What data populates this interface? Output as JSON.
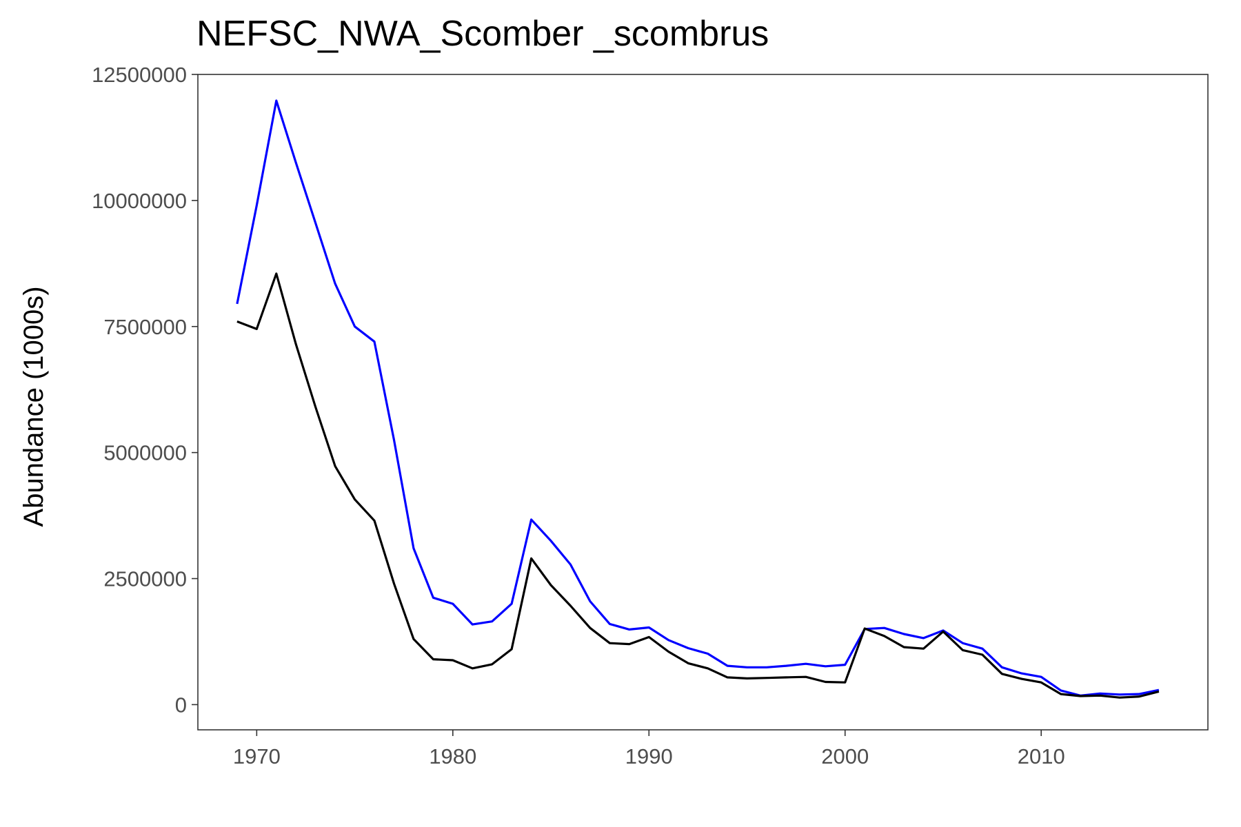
{
  "chart_data": {
    "type": "line",
    "title": "NEFSC_NWA_Scomber _scombrus",
    "xlabel": "",
    "ylabel": "Abundance (1000s)",
    "xlim": [
      1967,
      2018.5
    ],
    "ylim": [
      -500000,
      12500000
    ],
    "x_ticks": [
      1970,
      1980,
      1990,
      2000,
      2010
    ],
    "y_ticks": [
      0,
      2500000,
      5000000,
      7500000,
      10000000,
      12500000
    ],
    "grid": false,
    "legend": "none",
    "x": [
      1969,
      1970,
      1971,
      1972,
      1973,
      1974,
      1975,
      1976,
      1977,
      1978,
      1979,
      1980,
      1981,
      1982,
      1983,
      1984,
      1985,
      1986,
      1987,
      1988,
      1989,
      1990,
      1991,
      1992,
      1993,
      1994,
      1995,
      1996,
      1997,
      1998,
      1999,
      2000,
      2001,
      2002,
      2003,
      2004,
      2005,
      2006,
      2007,
      2008,
      2009,
      2010,
      2011,
      2012,
      2013,
      2014,
      2015,
      2016
    ],
    "series": [
      {
        "color": "#0000ff",
        "values": [
          7950000,
          9900000,
          11980000,
          10750000,
          9550000,
          8350000,
          7500000,
          7200000,
          5250000,
          3100000,
          2120000,
          2000000,
          1590000,
          1650000,
          2000000,
          3670000,
          3250000,
          2780000,
          2050000,
          1600000,
          1490000,
          1530000,
          1280000,
          1120000,
          1010000,
          770000,
          740000,
          740000,
          770000,
          810000,
          760000,
          790000,
          1500000,
          1520000,
          1400000,
          1320000,
          1470000,
          1220000,
          1110000,
          740000,
          620000,
          550000,
          280000,
          180000,
          220000,
          200000,
          210000,
          290000
        ]
      },
      {
        "color": "#000000",
        "values": [
          7600000,
          7450000,
          8550000,
          7150000,
          5900000,
          4730000,
          4070000,
          3650000,
          2400000,
          1300000,
          900000,
          880000,
          720000,
          800000,
          1100000,
          2900000,
          2370000,
          1960000,
          1520000,
          1220000,
          1200000,
          1340000,
          1050000,
          820000,
          720000,
          540000,
          520000,
          530000,
          540000,
          550000,
          450000,
          440000,
          1510000,
          1360000,
          1140000,
          1110000,
          1450000,
          1080000,
          990000,
          610000,
          510000,
          440000,
          210000,
          170000,
          180000,
          140000,
          160000,
          260000
        ]
      }
    ]
  }
}
